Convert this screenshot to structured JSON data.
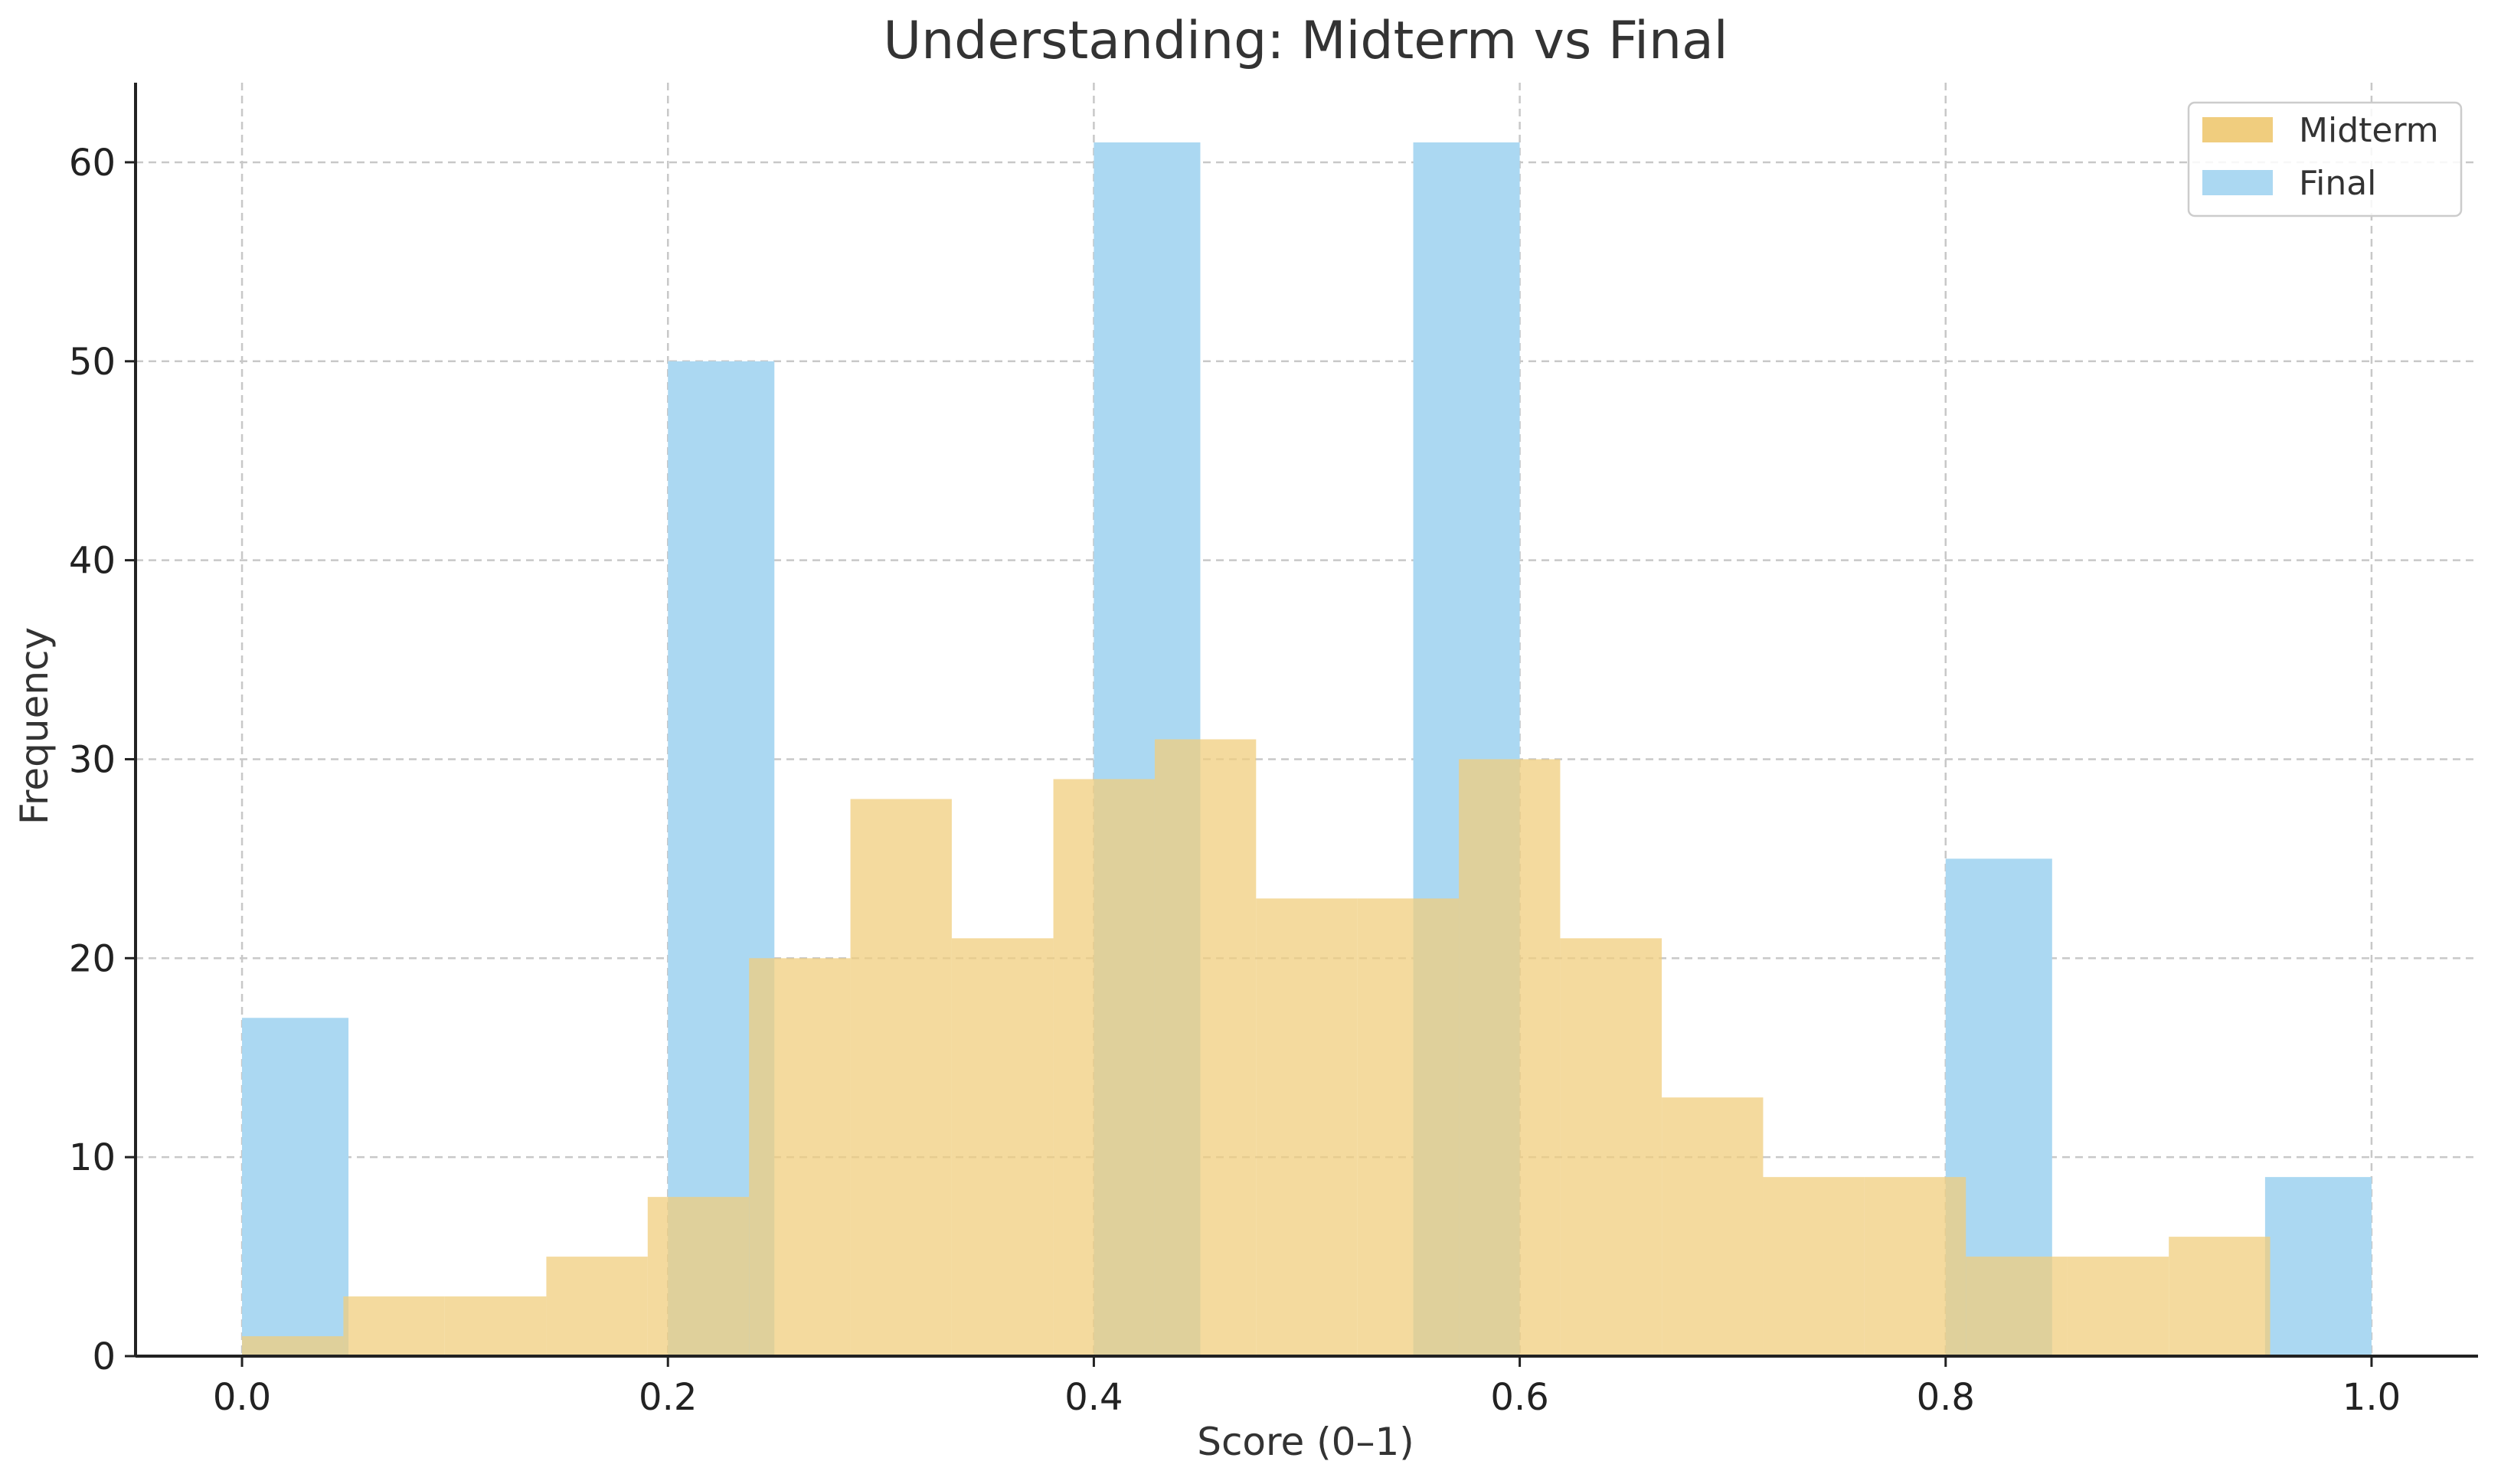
{
  "chart_data": {
    "type": "bar",
    "title": "Understanding: Midterm vs Final",
    "xlabel": "Score (0–1)",
    "ylabel": "Frequency",
    "xlim": [
      -0.05,
      1.05
    ],
    "ylim": [
      0,
      64
    ],
    "xticks": [
      0.0,
      0.2,
      0.4,
      0.6,
      0.8,
      1.0
    ],
    "xtick_labels": [
      "0.0",
      "0.2",
      "0.4",
      "0.6",
      "0.8",
      "1.0"
    ],
    "yticks": [
      0,
      10,
      20,
      30,
      40,
      50,
      60
    ],
    "ytick_labels": [
      "0",
      "10",
      "20",
      "30",
      "40",
      "50",
      "60"
    ],
    "grid": true,
    "legend_position": "top-right",
    "series": [
      {
        "name": "Midterm",
        "color": "#F0CD7E",
        "bin_edges": [
          0.0,
          0.0476,
          0.0952,
          0.1429,
          0.1905,
          0.2381,
          0.2857,
          0.3333,
          0.381,
          0.4286,
          0.4762,
          0.5238,
          0.5714,
          0.619,
          0.6667,
          0.7143,
          0.7619,
          0.8095,
          0.8571,
          0.9048,
          0.9524
        ],
        "values": [
          1,
          3,
          3,
          5,
          8,
          20,
          28,
          21,
          29,
          31,
          23,
          23,
          30,
          21,
          13,
          9,
          9,
          5,
          5,
          6
        ]
      },
      {
        "name": "Final",
        "color": "#ABD8F2",
        "bin_edges": [
          0.0,
          0.05,
          0.1,
          0.15,
          0.2,
          0.25,
          0.3,
          0.35,
          0.4,
          0.45,
          0.5,
          0.55,
          0.6,
          0.65,
          0.7,
          0.75,
          0.8,
          0.85,
          0.9,
          0.95,
          1.0
        ],
        "values": [
          17,
          0,
          0,
          0,
          50,
          0,
          0,
          0,
          61,
          0,
          0,
          61,
          0,
          0,
          0,
          0,
          25,
          0,
          0,
          9
        ]
      }
    ]
  }
}
